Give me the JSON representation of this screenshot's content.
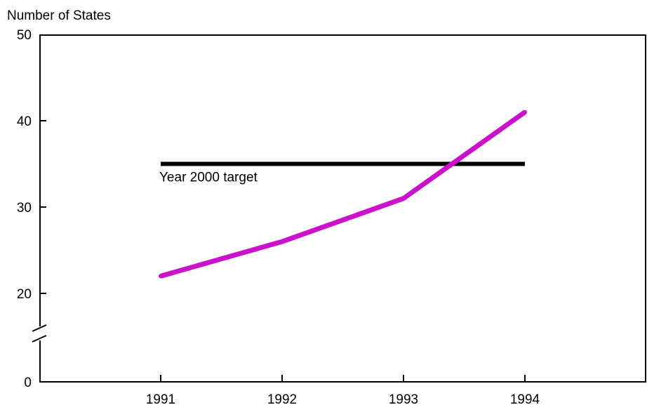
{
  "chart_data": {
    "type": "line",
    "title": "",
    "ylabel": "Number of States",
    "xlabel": "",
    "categories": [
      "1991",
      "1992",
      "1993",
      "1994"
    ],
    "y_ticks": [
      {
        "value": 0,
        "label": "0"
      },
      {
        "value": 20,
        "label": "20"
      },
      {
        "value": 30,
        "label": "30"
      },
      {
        "value": 40,
        "label": "40"
      },
      {
        "value": 50,
        "label": "50"
      }
    ],
    "ylim": [
      0,
      50
    ],
    "axis_break": true,
    "grid": false,
    "series": [
      {
        "values": [
          22,
          26,
          31,
          41
        ],
        "color": "#cc11cc"
      }
    ],
    "target": {
      "label": "Year 2000 target",
      "value": 35,
      "from": "1991",
      "to": "1994",
      "color": "#000000"
    }
  }
}
